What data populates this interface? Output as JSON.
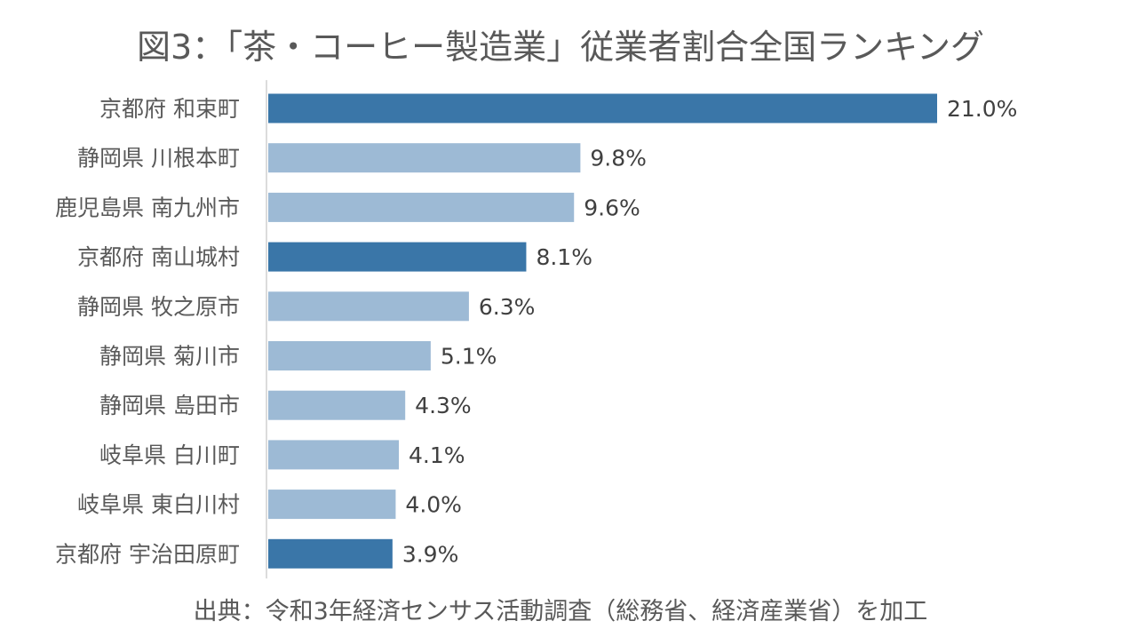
{
  "title": "図3：「茶・コーヒー製造業」従業者割合全国ランキング",
  "source": "出典：令和3年経済センサス活動調査（総務省、経済産業省）を加工",
  "colors": {
    "highlight": "#3a76a8",
    "normal": "#9dbad5",
    "axis": "#d0d0d0"
  },
  "chart_data": {
    "type": "bar",
    "orientation": "horizontal",
    "title": "図3：「茶・コーヒー製造業」従業者割合全国ランキング",
    "categories": [
      "京都府 和束町",
      "静岡県 川根本町",
      "鹿児島県 南九州市",
      "京都府 南山城村",
      "静岡県 牧之原市",
      "静岡県 菊川市",
      "静岡県 島田市",
      "岐阜県 白川町",
      "岐阜県 東白川村",
      "京都府 宇治田原町"
    ],
    "values": [
      21.0,
      9.8,
      9.6,
      8.1,
      6.3,
      5.1,
      4.3,
      4.1,
      4.0,
      3.9
    ],
    "value_labels": [
      "21.0%",
      "9.8%",
      "9.6%",
      "8.1%",
      "6.3%",
      "5.1%",
      "4.3%",
      "4.1%",
      "4.0%",
      "3.9%"
    ],
    "highlighted": [
      true,
      false,
      false,
      true,
      false,
      false,
      false,
      false,
      false,
      true
    ],
    "unit": "%",
    "xlim": [
      0,
      21.0
    ],
    "grid": false,
    "legend": "none"
  }
}
